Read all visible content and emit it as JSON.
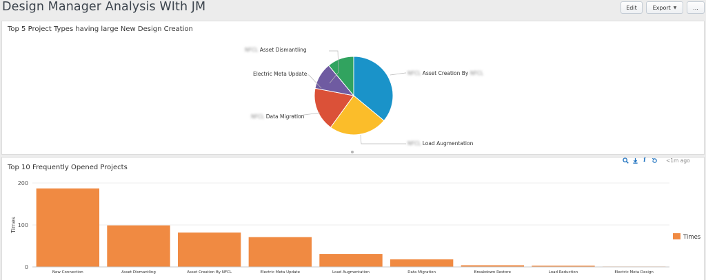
{
  "header": {
    "title": "Design Manager Analysis WIth JM",
    "edit_label": "Edit",
    "export_label": "Export",
    "more_label": "..."
  },
  "pie_panel": {
    "title": "Top 5 Project Types having large New Design Creation",
    "labels": {
      "asset_dismantling": "Asset Dismantling",
      "electric_meta_update": "Electric Meta Update",
      "data_migration": "Data Migration",
      "asset_creation": "Asset Creation By",
      "load_augmentation": "Load Augmentation"
    },
    "redacted_prefix": "NFCL"
  },
  "bar_panel": {
    "title": "Top 10 Frequently Opened Projects",
    "refresh_text": "<1m ago"
  },
  "colors": {
    "bar": "#f08a42",
    "pie": [
      "#1a93c9",
      "#fbbd2a",
      "#db5138",
      "#6f5ba1",
      "#31a35f"
    ]
  },
  "chart_data": [
    {
      "type": "pie",
      "title": "Top 5 Project Types having large New Design Creation",
      "slices": [
        {
          "label": "Asset Creation By",
          "value": 36
        },
        {
          "label": "Load Augmentation",
          "value": 24
        },
        {
          "label": "Data Migration",
          "value": 18
        },
        {
          "label": "Electric Meta Update",
          "value": 11
        },
        {
          "label": "Asset Dismantling",
          "value": 11
        }
      ]
    },
    {
      "type": "bar",
      "title": "Top 10 Frequently Opened Projects",
      "ylabel": "Times",
      "ylim": [
        0,
        200
      ],
      "yticks": [
        0,
        100,
        200
      ],
      "categories": [
        "New Connection",
        "Asset Dismantling",
        "Asset Creation By NFCL",
        "Electric Meta Update",
        "Load Augmentation",
        "Data Migration",
        "Breakdown Restore",
        "Load Reduction",
        "Electric Meta Design"
      ],
      "values": [
        187,
        99,
        82,
        71,
        31,
        18,
        4,
        3,
        1
      ],
      "legend": {
        "position": "right",
        "entries": [
          "Times"
        ]
      },
      "grid": true
    }
  ]
}
